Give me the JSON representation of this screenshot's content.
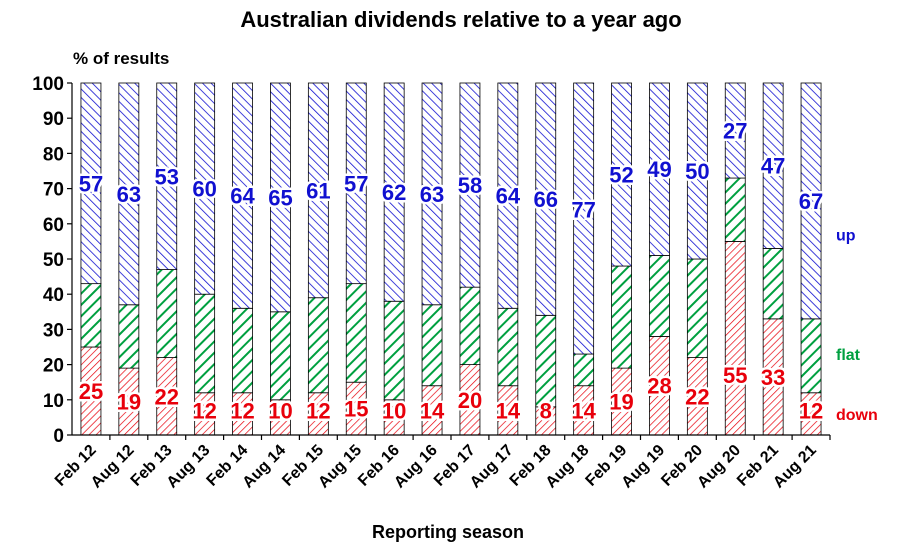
{
  "chart_data": {
    "type": "bar",
    "stacked": true,
    "title": "Australian dividends relative to a year ago",
    "ylabel": "% of results",
    "xlabel": "Reporting season",
    "ylim": [
      0,
      100
    ],
    "yticks": [
      0,
      10,
      20,
      30,
      40,
      50,
      60,
      70,
      80,
      90,
      100
    ],
    "categories": [
      "Feb 12",
      "Aug 12",
      "Feb 13",
      "Aug 13",
      "Feb 14",
      "Aug 14",
      "Feb 15",
      "Aug 15",
      "Feb 16",
      "Aug 16",
      "Feb 17",
      "Aug 17",
      "Feb 18",
      "Aug 18",
      "Feb 19",
      "Aug 19",
      "Feb 20",
      "Aug 20",
      "Feb 21",
      "Aug 21"
    ],
    "series": [
      {
        "name": "down",
        "color": "#e8000b",
        "values": [
          25,
          19,
          22,
          12,
          12,
          10,
          12,
          15,
          10,
          14,
          20,
          14,
          8,
          14,
          19,
          28,
          22,
          55,
          33,
          12
        ]
      },
      {
        "name": "flat",
        "color": "#00a040",
        "values": [
          18,
          18,
          25,
          28,
          24,
          25,
          27,
          28,
          28,
          23,
          22,
          22,
          26,
          9,
          29,
          23,
          28,
          18,
          20,
          21
        ]
      },
      {
        "name": "up",
        "color": "#1010d0",
        "values": [
          57,
          63,
          53,
          60,
          64,
          65,
          61,
          57,
          62,
          63,
          58,
          64,
          66,
          77,
          52,
          49,
          50,
          27,
          47,
          67
        ]
      }
    ],
    "labeled_series": [
      "down",
      "up"
    ],
    "legend": "right, inline labels",
    "grid": false
  }
}
